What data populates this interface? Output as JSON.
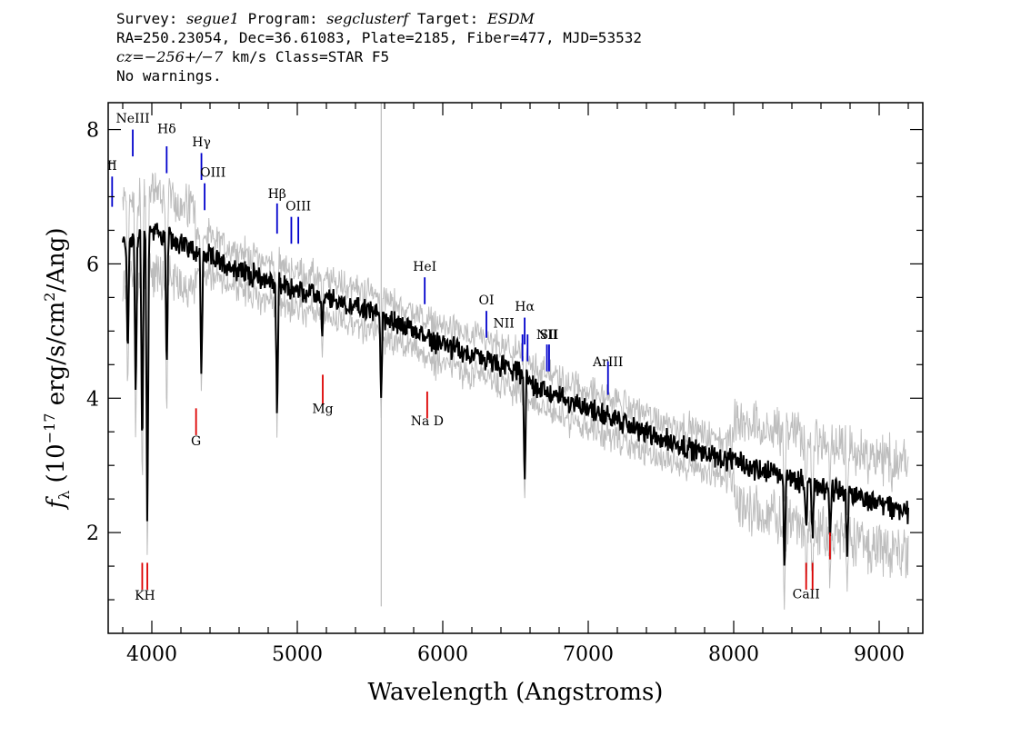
{
  "header": {
    "line1": {
      "survey_label": "Survey: ",
      "survey": "segue1",
      "program_label": " Program: ",
      "program": "segclusterf",
      "target_label": " Target: ",
      "target": "ESDM"
    },
    "line2": "RA=250.23054, Dec=36.61083, Plate=2185, Fiber=477, MJD=53532",
    "line3": {
      "cz_label": "cz=",
      "cz": "−256+/−7",
      "rest": " km/s Class=STAR F5"
    },
    "line4": "No warnings."
  },
  "chart_data": {
    "type": "line",
    "xlabel": "Wavelength (Angstroms)",
    "ylabel_parts": {
      "f": "f",
      "sub": "λ",
      "pre": " (10",
      "exp1": "−17",
      "mid": " erg/s/cm",
      "exp2": "2",
      "post": "/Ang)"
    },
    "xlim": [
      3700,
      9300
    ],
    "ylim": [
      0.5,
      8.4
    ],
    "xticks": [
      4000,
      5000,
      6000,
      7000,
      8000,
      9000
    ],
    "yticks": [
      2,
      4,
      6,
      8
    ],
    "colors": {
      "flux": "#000000",
      "noise": "#bdbdbd",
      "emission": "#0000cc",
      "absorption": "#dd0000"
    },
    "sky_line": 5577,
    "continuum": [
      [
        3800,
        6.3
      ],
      [
        4000,
        6.5
      ],
      [
        4200,
        6.3
      ],
      [
        4500,
        6.0
      ],
      [
        4800,
        5.75
      ],
      [
        5000,
        5.6
      ],
      [
        5500,
        5.3
      ],
      [
        6000,
        4.8
      ],
      [
        6500,
        4.4
      ],
      [
        6700,
        4.1
      ],
      [
        7000,
        3.85
      ],
      [
        7500,
        3.4
      ],
      [
        8000,
        3.05
      ],
      [
        8500,
        2.75
      ],
      [
        9000,
        2.45
      ],
      [
        9200,
        2.3
      ]
    ],
    "absorption_features": [
      {
        "x": 3835,
        "depth": 1.8
      },
      {
        "x": 3889,
        "depth": 2.5
      },
      {
        "x": 3934,
        "depth": 3.5
      },
      {
        "x": 3969,
        "depth": 4.6
      },
      {
        "x": 4102,
        "depth": 2.2
      },
      {
        "x": 4341,
        "depth": 2.0
      },
      {
        "x": 4861,
        "depth": 2.1
      },
      {
        "x": 5172,
        "depth": 0.6
      },
      {
        "x": 5577,
        "depth": 1.2
      },
      {
        "x": 6563,
        "depth": 1.6
      },
      {
        "x": 8350,
        "depth": 1.4
      },
      {
        "x": 8498,
        "depth": 0.8
      },
      {
        "x": 8542,
        "depth": 0.9
      },
      {
        "x": 8662,
        "depth": 0.9
      },
      {
        "x": 8780,
        "depth": 1.0
      }
    ],
    "emission_lines": [
      {
        "label": "II",
        "x": 3727,
        "y_top": 7.3,
        "y_bot": 6.85,
        "lx": 3727,
        "ly": 7.4
      },
      {
        "label": "NeIII",
        "x": 3869,
        "y_top": 8.0,
        "y_bot": 7.6,
        "lx": 3869,
        "ly": 8.1
      },
      {
        "label": "Hδ",
        "x": 4102,
        "y_top": 7.75,
        "y_bot": 7.35,
        "lx": 4102,
        "ly": 7.95
      },
      {
        "label": "Hγ",
        "x": 4341,
        "y_top": 7.65,
        "y_bot": 7.25,
        "lx": 4341,
        "ly": 7.75
      },
      {
        "label": "OIII",
        "x": 4363,
        "y_top": 7.2,
        "y_bot": 6.8,
        "lx": 4420,
        "ly": 7.3
      },
      {
        "label": "Hβ",
        "x": 4861,
        "y_top": 6.9,
        "y_bot": 6.45,
        "lx": 4861,
        "ly": 6.98
      },
      {
        "label": "OIII",
        "x": 4959,
        "y_top": 6.7,
        "y_bot": 6.3,
        "lx": 5007,
        "ly": 6.8
      },
      {
        "label": "",
        "x": 5007,
        "y_top": 6.7,
        "y_bot": 6.3,
        "lx": 5007,
        "ly": 6.8
      },
      {
        "label": "HeI",
        "x": 5876,
        "y_top": 5.8,
        "y_bot": 5.4,
        "lx": 5876,
        "ly": 5.9
      },
      {
        "label": "OI",
        "x": 6300,
        "y_top": 5.3,
        "y_bot": 4.9,
        "lx": 6300,
        "ly": 5.4
      },
      {
        "label": "NII",
        "x": 6548,
        "y_top": 4.95,
        "y_bot": 4.55,
        "lx": 6420,
        "ly": 5.05
      },
      {
        "label": "Hα",
        "x": 6563,
        "y_top": 5.2,
        "y_bot": 4.8,
        "lx": 6563,
        "ly": 5.3
      },
      {
        "label": "",
        "x": 6583,
        "y_top": 4.95,
        "y_bot": 4.55,
        "lx": 6583,
        "ly": 4.95
      },
      {
        "label": "NII",
        "x": 6716,
        "y_top": 4.8,
        "y_bot": 4.4,
        "lx": 6716,
        "ly": 4.88
      },
      {
        "label": "SII",
        "x": 6731,
        "y_top": 4.8,
        "y_bot": 4.4,
        "lx": 6731,
        "ly": 4.88
      },
      {
        "label": "ArIII",
        "x": 7136,
        "y_top": 4.55,
        "y_bot": 4.05,
        "lx": 7136,
        "ly": 4.48
      }
    ],
    "absorption_lines": [
      {
        "label": "K",
        "x": 3934,
        "y_top": 1.55,
        "y_bot": 1.15,
        "lx": 3915,
        "ly": 1.0
      },
      {
        "label": "H",
        "x": 3969,
        "y_top": 1.55,
        "y_bot": 1.15,
        "lx": 3985,
        "ly": 1.0
      },
      {
        "label": "G",
        "x": 4304,
        "y_top": 3.85,
        "y_bot": 3.45,
        "lx": 4304,
        "ly": 3.3
      },
      {
        "label": "Mg",
        "x": 5175,
        "y_top": 4.35,
        "y_bot": 3.9,
        "lx": 5175,
        "ly": 3.78
      },
      {
        "label": "Na D",
        "x": 5893,
        "y_top": 4.1,
        "y_bot": 3.7,
        "lx": 5893,
        "ly": 3.6
      },
      {
        "label": "CaII",
        "x": 8498,
        "y_top": 1.55,
        "y_bot": 1.15,
        "lx": 8498,
        "ly": 1.02
      },
      {
        "label": "",
        "x": 8542,
        "y_top": 1.55,
        "y_bot": 1.15,
        "lx": 8542,
        "ly": 1.02
      },
      {
        "label": "",
        "x": 8662,
        "y_top": 2.0,
        "y_bot": 1.6,
        "lx": 8662,
        "ly": 1.6
      }
    ]
  }
}
